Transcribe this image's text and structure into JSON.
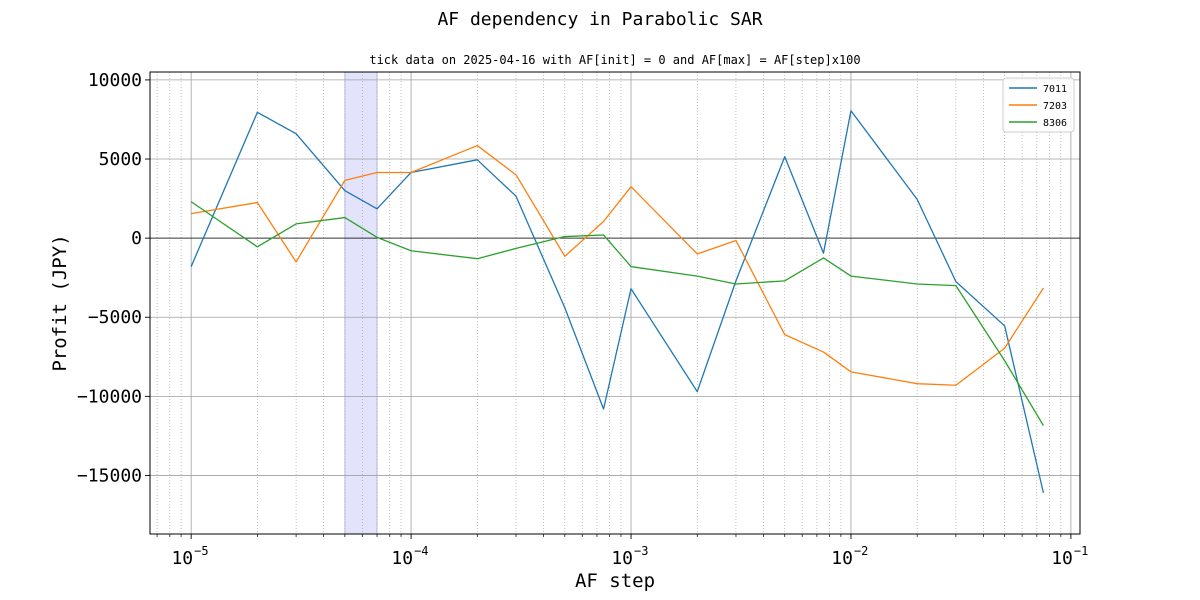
{
  "chart_data": {
    "type": "line",
    "title": "AF dependency in Parabolic SAR",
    "subtitle": "tick data on 2025-04-16 with AF[init] = 0 and AF[max] = AF[step]x100",
    "xlabel": "AF step",
    "ylabel": "Profit (JPY)",
    "xscale": "log",
    "xlim": [
      6.5e-06,
      0.11
    ],
    "ylim": [
      -18700,
      10500
    ],
    "grid": true,
    "legend_position": "top-right",
    "x": [
      1e-05,
      2e-05,
      3e-05,
      5e-05,
      7e-05,
      0.0001,
      0.0002,
      0.0003,
      0.0005,
      0.00075,
      0.001,
      0.002,
      0.003,
      0.005,
      0.0075,
      0.01,
      0.02,
      0.03,
      0.05,
      0.075
    ],
    "series": [
      {
        "name": "7011",
        "color": "#1f77b4",
        "values": [
          -1800,
          7950,
          6600,
          3000,
          1850,
          4150,
          4950,
          2650,
          -4400,
          -10800,
          -3200,
          -9700,
          -2700,
          5150,
          -950,
          8050,
          2450,
          -2750,
          -5550,
          -16100
        ]
      },
      {
        "name": "7203",
        "color": "#ff7f0e",
        "values": [
          1550,
          2250,
          -1500,
          3650,
          4150,
          4150,
          5850,
          4000,
          -1150,
          1050,
          3250,
          -1000,
          -150,
          -6100,
          -7200,
          -8450,
          -9200,
          -9300,
          -6950,
          -3150
        ]
      },
      {
        "name": "8306",
        "color": "#2ca02c",
        "values": [
          2300,
          -550,
          900,
          1300,
          50,
          -800,
          -1300,
          -650,
          100,
          200,
          -1800,
          -2400,
          -2900,
          -2700,
          -1250,
          -2400,
          -2900,
          -3000,
          -7750,
          -11850
        ]
      }
    ],
    "y_ticks": [
      {
        "value": 10000,
        "label": "10000"
      },
      {
        "value": 5000,
        "label": "5000"
      },
      {
        "value": 0,
        "label": "0"
      },
      {
        "value": -5000,
        "label": "−5000"
      },
      {
        "value": -10000,
        "label": "−10000"
      },
      {
        "value": -15000,
        "label": "−15000"
      }
    ],
    "x_ticks": [
      {
        "value": 1e-05,
        "base": "10",
        "exponent": "−5"
      },
      {
        "value": 0.0001,
        "base": "10",
        "exponent": "−4"
      },
      {
        "value": 0.001,
        "base": "10",
        "exponent": "−3"
      },
      {
        "value": 0.01,
        "base": "10",
        "exponent": "−2"
      },
      {
        "value": 0.1,
        "base": "10",
        "exponent": "−1"
      }
    ],
    "highlight_span": {
      "x_from": 5e-05,
      "x_to": 7e-05,
      "color": "#e3e3fb"
    },
    "zero_line": 0
  }
}
